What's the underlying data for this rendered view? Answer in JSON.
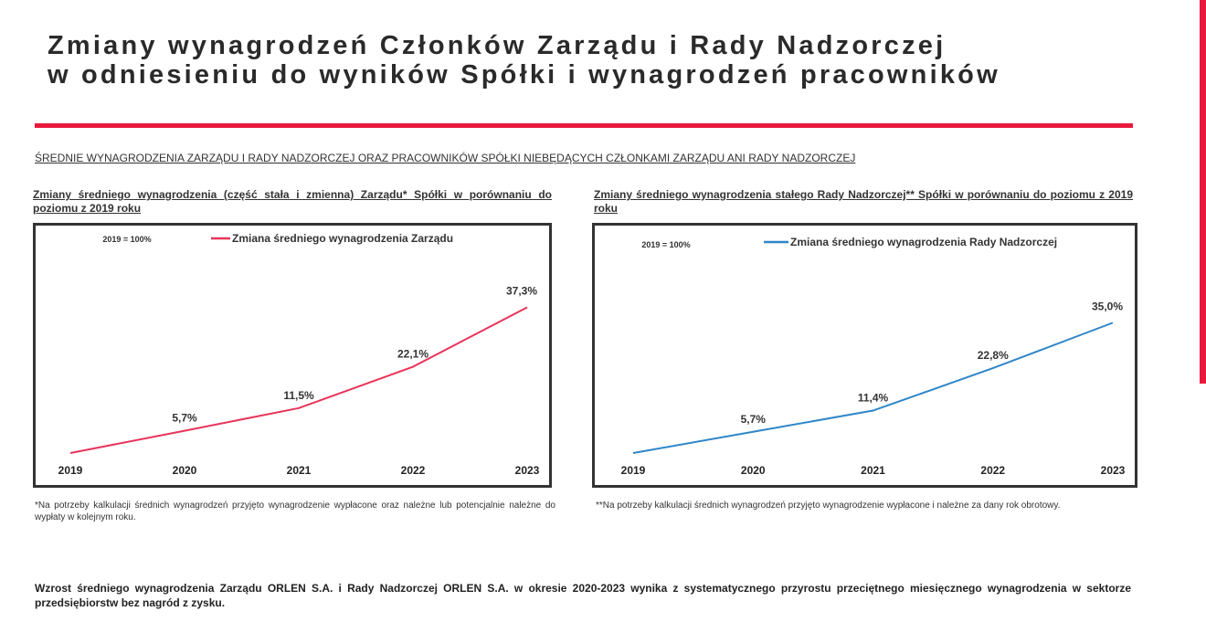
{
  "title_lines": [
    "Zmiany wynagrodzeń Członków Zarządu i Rady Nadzorczej",
    "w odniesieniu do wyników Spółki i wynagrodzeń pracowników"
  ],
  "section_heading": "ŚREDNIE WYNAGRODZENIA ZARZĄDU I RADY NADZORCZEJ ORAZ PRACOWNIKÓW SPÓŁKI NIEBĘDĄCYCH CZŁONKAMI ZARZĄDU ANI RADY NADZORCZEJ",
  "colors": {
    "accent": "#e8193c",
    "board": "#e8345a",
    "council": "#2f86c8"
  },
  "left": {
    "heading": "Zmiany średniego wynagrodzenia (część stała i zmienna) Zarządu* Spółki w porównaniu do poziomu z 2019 roku",
    "note": "*Na potrzeby kalkulacji średnich wynagrodzeń przyjęto wynagrodzenie wypłacone oraz należne lub potencjalnie należne do wypłaty w kolejnym roku."
  },
  "right": {
    "heading": "Zmiany średniego wynagrodzenia stałego Rady Nadzorczej** Spółki w porównaniu do poziomu z 2019 roku",
    "note": "**Na potrzeby kalkulacji średnich wynagrodzeń przyjęto wynagrodzenie wypłacone i należne za dany rok obrotowy."
  },
  "conclusion": "Wzrost średniego wynagrodzenia Zarządu ORLEN S.A. i Rady Nadzorczej ORLEN S.A. w okresie 2020-2023 wynika z systematycznego przyrostu przeciętnego miesięcznego wynagrodzenia w sektorze przedsiębiorstw bez nagród z zysku.",
  "chart_data": [
    {
      "type": "line",
      "annotation": "2019 = 100%",
      "categories": [
        "2019",
        "2020",
        "2021",
        "2022",
        "2023"
      ],
      "series": [
        {
          "name": "Zmiana średniego wynagrodzenia Zarządu",
          "values": [
            0,
            5.7,
            11.5,
            22.1,
            37.3
          ],
          "labels": [
            "",
            "5,7%",
            "11,5%",
            "22,1%",
            "37,3%"
          ],
          "color": "#e8345a"
        }
      ],
      "legend": "top",
      "grid": false
    },
    {
      "type": "line",
      "annotation": "2019 = 100%",
      "categories": [
        "2019",
        "2020",
        "2021",
        "2022",
        "2023"
      ],
      "series": [
        {
          "name": "Zmiana średniego wynagrodzenia Rady Nadzorczej",
          "values": [
            0,
            5.7,
            11.4,
            22.8,
            35.0
          ],
          "labels": [
            "",
            "5,7%",
            "11,4%",
            "22,8%",
            "35,0%"
          ],
          "color": "#2f86c8"
        }
      ],
      "legend": "top",
      "grid": false
    }
  ]
}
